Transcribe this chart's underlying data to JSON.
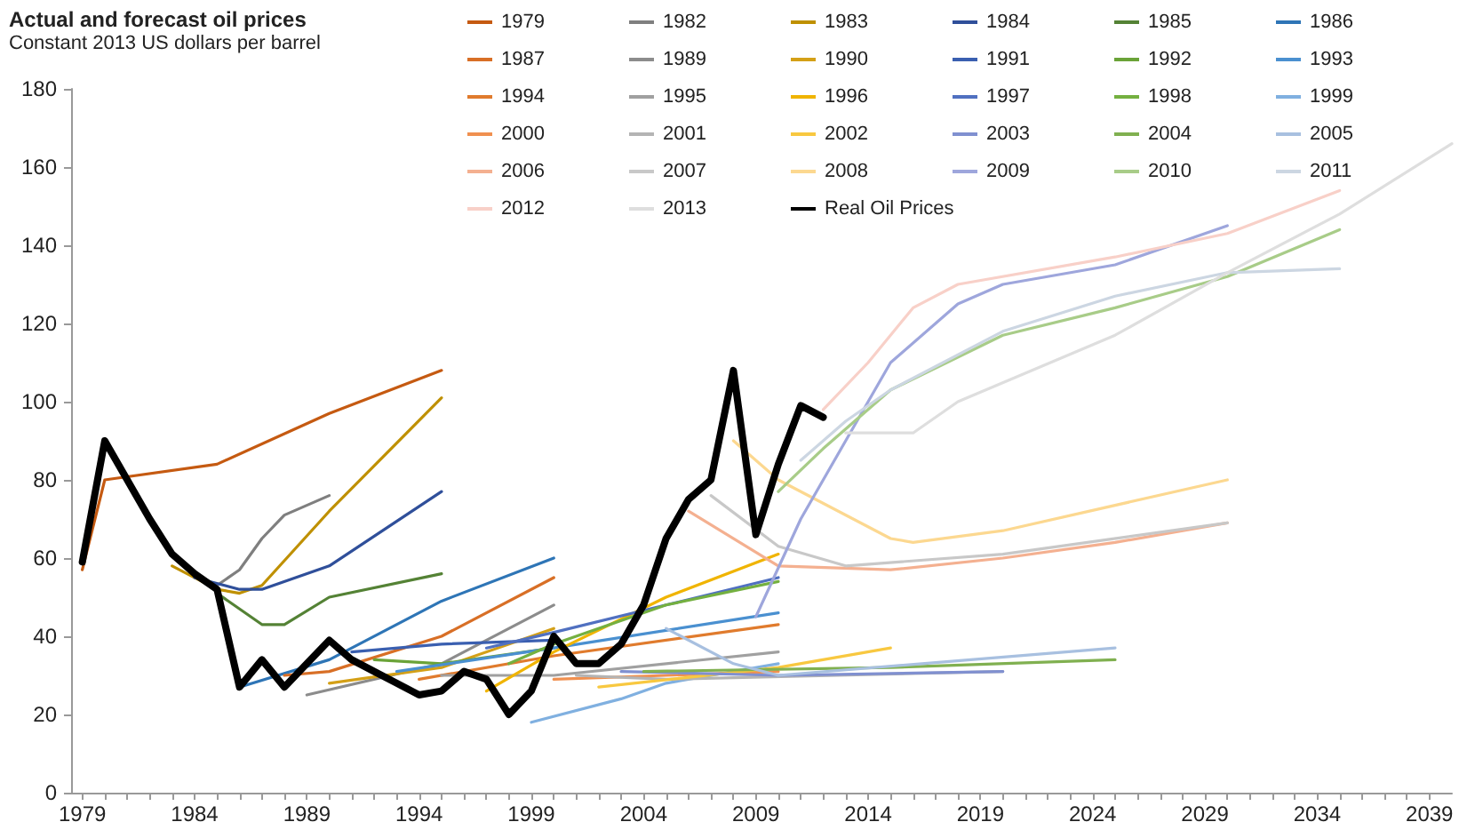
{
  "chart_data": {
    "type": "line",
    "title": "Actual and forecast oil prices",
    "subtitle": "Constant 2013 US dollars per barrel",
    "xlim": [
      1978.5,
      2040
    ],
    "ylim": [
      0,
      180
    ],
    "yticks": [
      0,
      20,
      40,
      60,
      80,
      100,
      120,
      140,
      160,
      180
    ],
    "xticks": [
      1979,
      {
        "value": 1980,
        "label": null
      },
      {
        "value": 1981,
        "label": null
      },
      {
        "value": 1982,
        "label": null
      },
      {
        "value": 1983,
        "label": null
      },
      1984,
      {
        "value": 1985,
        "label": null
      },
      {
        "value": 1986,
        "label": null
      },
      {
        "value": 1987,
        "label": null
      },
      {
        "value": 1988,
        "label": null
      },
      1989,
      {
        "value": 1990,
        "label": null
      },
      {
        "value": 1991,
        "label": null
      },
      {
        "value": 1992,
        "label": null
      },
      {
        "value": 1993,
        "label": null
      },
      1994,
      {
        "value": 1995,
        "label": null
      },
      {
        "value": 1996,
        "label": null
      },
      {
        "value": 1997,
        "label": null
      },
      {
        "value": 1998,
        "label": null
      },
      1999,
      {
        "value": 2000,
        "label": null
      },
      {
        "value": 2001,
        "label": null
      },
      {
        "value": 2002,
        "label": null
      },
      {
        "value": 2003,
        "label": null
      },
      2004,
      {
        "value": 2005,
        "label": null
      },
      {
        "value": 2006,
        "label": null
      },
      {
        "value": 2007,
        "label": null
      },
      {
        "value": 2008,
        "label": null
      },
      2009,
      {
        "value": 2010,
        "label": null
      },
      {
        "value": 2011,
        "label": null
      },
      {
        "value": 2012,
        "label": null
      },
      {
        "value": 2013,
        "label": null
      },
      2014,
      {
        "value": 2015,
        "label": null
      },
      {
        "value": 2016,
        "label": null
      },
      {
        "value": 2017,
        "label": null
      },
      {
        "value": 2018,
        "label": null
      },
      2019,
      {
        "value": 2020,
        "label": null
      },
      {
        "value": 2021,
        "label": null
      },
      {
        "value": 2022,
        "label": null
      },
      {
        "value": 2023,
        "label": null
      },
      2024,
      {
        "value": 2025,
        "label": null
      },
      {
        "value": 2026,
        "label": null
      },
      {
        "value": 2027,
        "label": null
      },
      {
        "value": 2028,
        "label": null
      },
      2029,
      {
        "value": 2030,
        "label": null
      },
      {
        "value": 2031,
        "label": null
      },
      {
        "value": 2032,
        "label": null
      },
      {
        "value": 2033,
        "label": null
      },
      2034,
      {
        "value": 2035,
        "label": null
      },
      {
        "value": 2036,
        "label": null
      },
      {
        "value": 2037,
        "label": null
      },
      {
        "value": 2038,
        "label": null
      },
      2039
    ],
    "grid": false,
    "legend": "top right",
    "marker": "none",
    "line_style": "solid",
    "series": [
      {
        "name": "1979",
        "color": "#c55a11",
        "x": [
          1979,
          1980,
          1985,
          1990,
          1995
        ],
        "values": [
          57,
          80,
          84,
          97,
          108
        ]
      },
      {
        "name": "1982",
        "color": "#7f7f7f",
        "x": [
          1984,
          1985,
          1986,
          1987,
          1988,
          1990
        ],
        "values": [
          55,
          53,
          57,
          65,
          71,
          76
        ]
      },
      {
        "name": "1983",
        "color": "#bf9000",
        "x": [
          1983,
          1985,
          1986,
          1987,
          1990,
          1995
        ],
        "values": [
          58,
          52,
          51,
          53,
          72,
          101
        ]
      },
      {
        "name": "1984",
        "color": "#2f4f9a",
        "x": [
          1984,
          1986,
          1987,
          1990,
          1995
        ],
        "values": [
          55,
          52,
          52,
          58,
          77
        ]
      },
      {
        "name": "1985",
        "color": "#548235",
        "x": [
          1985,
          1987,
          1988,
          1990,
          1995
        ],
        "values": [
          51,
          43,
          43,
          50,
          56
        ]
      },
      {
        "name": "1986",
        "color": "#2e75b6",
        "x": [
          1986,
          1990,
          1995,
          2000
        ],
        "values": [
          27,
          34,
          49,
          60
        ]
      },
      {
        "name": "1987",
        "color": "#d86f26",
        "x": [
          1988,
          1990,
          1995,
          2000
        ],
        "values": [
          30,
          31,
          40,
          55
        ]
      },
      {
        "name": "1989",
        "color": "#8c8c8c",
        "x": [
          1989,
          1995,
          2000
        ],
        "values": [
          25,
          33,
          48
        ]
      },
      {
        "name": "1990",
        "color": "#d4a017",
        "x": [
          1990,
          1995,
          2000
        ],
        "values": [
          28,
          32,
          42
        ]
      },
      {
        "name": "1991",
        "color": "#3a5fb0",
        "x": [
          1991,
          1995,
          2000
        ],
        "values": [
          36,
          38,
          39
        ]
      },
      {
        "name": "1992",
        "color": "#6aa338",
        "x": [
          1992,
          1995,
          2000
        ],
        "values": [
          34,
          33,
          37
        ]
      },
      {
        "name": "1993",
        "color": "#4a90d0",
        "x": [
          1993,
          2000,
          2010
        ],
        "values": [
          31,
          37,
          46
        ]
      },
      {
        "name": "1994",
        "color": "#e07b2d",
        "x": [
          1994,
          2000,
          2010
        ],
        "values": [
          29,
          35,
          43
        ]
      },
      {
        "name": "1995",
        "color": "#a0a0a0",
        "x": [
          1995,
          2000,
          2010
        ],
        "values": [
          30,
          30,
          36
        ]
      },
      {
        "name": "1996",
        "color": "#f0b400",
        "x": [
          1997,
          2000,
          2005,
          2010
        ],
        "values": [
          26,
          36,
          50,
          61
        ]
      },
      {
        "name": "1997",
        "color": "#5070c0",
        "x": [
          1997,
          2000,
          2005,
          2010
        ],
        "values": [
          37,
          41,
          48,
          55
        ]
      },
      {
        "name": "1998",
        "color": "#74b040",
        "x": [
          1998,
          2000,
          2005,
          2010
        ],
        "values": [
          33,
          38,
          48,
          54
        ]
      },
      {
        "name": "1999",
        "color": "#80b0e0",
        "x": [
          1999,
          2003,
          2005,
          2010
        ],
        "values": [
          18,
          24,
          28,
          33
        ]
      },
      {
        "name": "2000",
        "color": "#f09050",
        "x": [
          2000,
          2005,
          2010
        ],
        "values": [
          29,
          30,
          31
        ]
      },
      {
        "name": "2001",
        "color": "#b4b4b4",
        "x": [
          2001,
          2005,
          2020
        ],
        "values": [
          30,
          29,
          31
        ]
      },
      {
        "name": "2002",
        "color": "#f8c840",
        "x": [
          2002,
          2010,
          2015
        ],
        "values": [
          27,
          32,
          37
        ]
      },
      {
        "name": "2003",
        "color": "#8090d0",
        "x": [
          2003,
          2010,
          2020
        ],
        "values": [
          31,
          30,
          31
        ]
      },
      {
        "name": "2004",
        "color": "#80b050",
        "x": [
          2004,
          2015,
          2025
        ],
        "values": [
          31,
          32,
          34
        ]
      },
      {
        "name": "2005",
        "color": "#a8c0e0",
        "x": [
          2005,
          2008,
          2010,
          2025
        ],
        "values": [
          42,
          33,
          30,
          37
        ]
      },
      {
        "name": "2006",
        "color": "#f4b090",
        "x": [
          2006,
          2010,
          2015,
          2020,
          2025,
          2030
        ],
        "values": [
          72,
          58,
          57,
          60,
          64,
          69
        ]
      },
      {
        "name": "2007",
        "color": "#c8c8c8",
        "x": [
          2007,
          2010,
          2013,
          2020,
          2030
        ],
        "values": [
          76,
          63,
          58,
          61,
          69
        ]
      },
      {
        "name": "2008",
        "color": "#fcd890",
        "x": [
          2008,
          2010,
          2015,
          2016,
          2020,
          2030
        ],
        "values": [
          90,
          80,
          65,
          64,
          67,
          80
        ]
      },
      {
        "name": "2009",
        "color": "#9ea6dc",
        "x": [
          2009,
          2011,
          2013,
          2015,
          2018,
          2020,
          2025,
          2030
        ],
        "values": [
          45,
          70,
          90,
          110,
          125,
          130,
          135,
          145
        ]
      },
      {
        "name": "2010",
        "color": "#a8cc88",
        "x": [
          2010,
          2012,
          2015,
          2020,
          2025,
          2030,
          2035
        ],
        "values": [
          77,
          88,
          103,
          117,
          124,
          132,
          144
        ]
      },
      {
        "name": "2011",
        "color": "#ccd6e2",
        "x": [
          2011,
          2013,
          2015,
          2020,
          2025,
          2030,
          2035
        ],
        "values": [
          85,
          95,
          103,
          118,
          127,
          133,
          134
        ]
      },
      {
        "name": "2012",
        "color": "#f8d0c8",
        "x": [
          2012,
          2014,
          2016,
          2018,
          2025,
          2030,
          2035
        ],
        "values": [
          98,
          110,
          124,
          130,
          137,
          143,
          154
        ]
      },
      {
        "name": "2013",
        "color": "#dedede",
        "x": [
          2013,
          2016,
          2018,
          2025,
          2030,
          2035,
          2040
        ],
        "values": [
          92,
          92,
          100,
          117,
          133,
          148,
          166
        ]
      },
      {
        "name": "Real Oil Prices",
        "color": "#000000",
        "x": [
          1979,
          1980,
          1981,
          1982,
          1983,
          1984,
          1985,
          1986,
          1987,
          1988,
          1989,
          1990,
          1991,
          1992,
          1993,
          1994,
          1995,
          1996,
          1997,
          1998,
          1999,
          2000,
          2001,
          2002,
          2003,
          2004,
          2005,
          2006,
          2007,
          2008,
          2009,
          2010,
          2011,
          2012
        ],
        "values": [
          59,
          90,
          80,
          70,
          61,
          56,
          52,
          27,
          34,
          27,
          33,
          39,
          34,
          31,
          28,
          25,
          26,
          31,
          29,
          20,
          26,
          40,
          33,
          33,
          38,
          48,
          65,
          75,
          80,
          108,
          66,
          84,
          99,
          96
        ]
      }
    ]
  }
}
